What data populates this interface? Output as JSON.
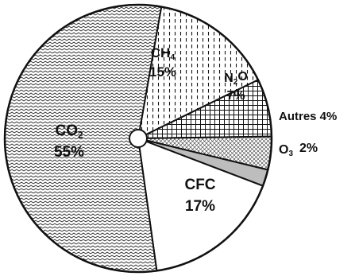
{
  "chart_data": {
    "type": "pie",
    "title": "",
    "slices": [
      {
        "key": "ch4",
        "label": "CH4",
        "label_main": "CH",
        "label_sub": "4",
        "label_sub_after": "",
        "value": 15,
        "value_text": "15%"
      },
      {
        "key": "n2o",
        "label": "N2O",
        "label_main": "N",
        "label_sub": "2",
        "label_sub_after": "O",
        "value": 7,
        "value_text": "7%"
      },
      {
        "key": "autres",
        "label": "Autres",
        "label_main": "Autres",
        "label_sub": "",
        "label_sub_after": "",
        "value": 4,
        "value_text": "4%"
      },
      {
        "key": "o3",
        "label": "O3",
        "label_main": "O",
        "label_sub": "3",
        "label_sub_after": "",
        "value": 2,
        "value_text": "2%"
      },
      {
        "key": "cfc",
        "label": "CFC",
        "label_main": "CFC",
        "label_sub": "",
        "label_sub_after": "",
        "value": 17,
        "value_text": "17%"
      },
      {
        "key": "co2",
        "label": "CO2",
        "label_main": "CO",
        "label_sub": "2",
        "label_sub_after": "",
        "value": 55,
        "value_text": "55%"
      }
    ],
    "legend": "none",
    "center_hole": true
  },
  "colors": {
    "outline": "#111111",
    "o3_fill": "#bdbdbd",
    "cfc_fill": "#ffffff",
    "background": "#ffffff"
  }
}
